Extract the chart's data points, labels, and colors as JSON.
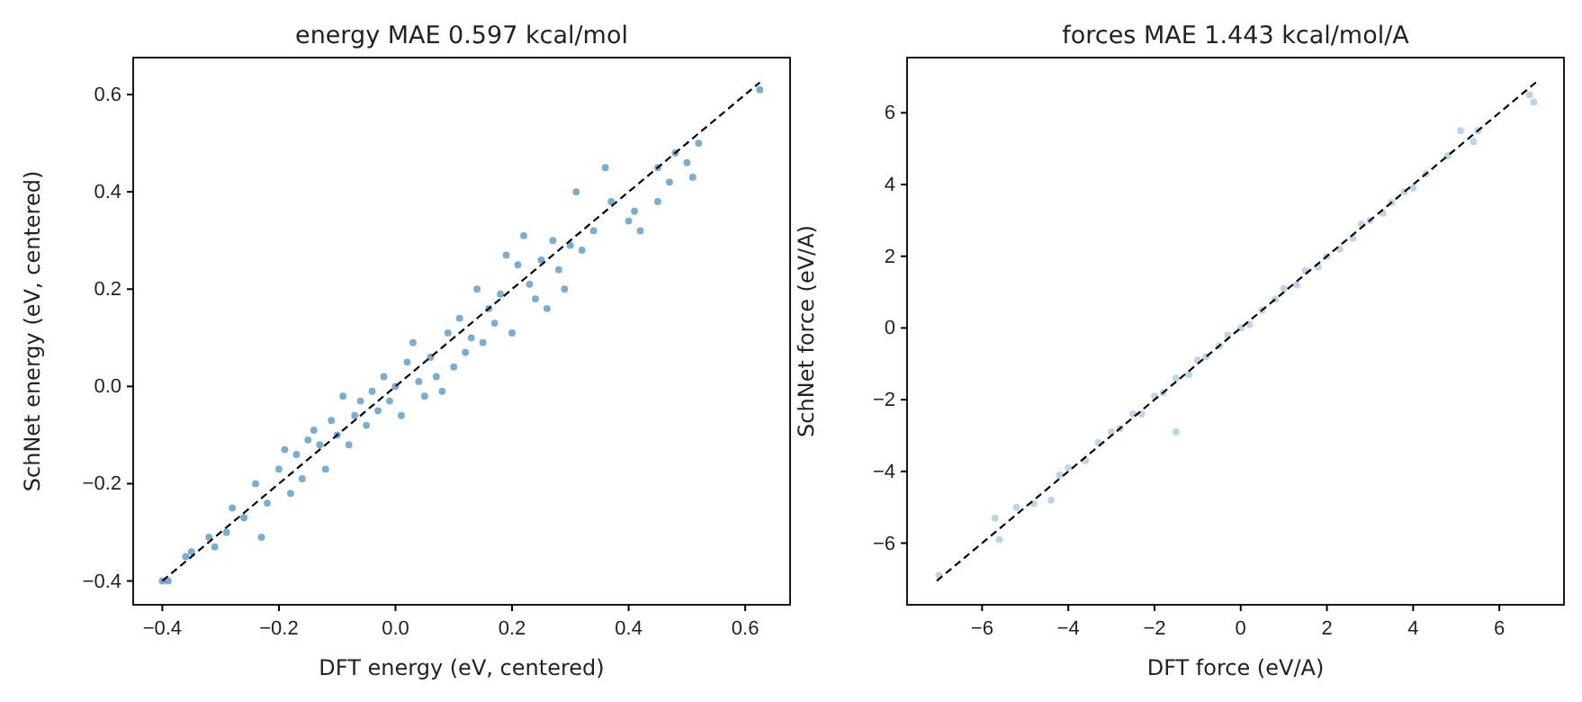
{
  "chart_data": [
    {
      "type": "scatter",
      "title": "energy  MAE 0.597 kcal/mol",
      "xlabel": "DFT energy (eV, centered)",
      "ylabel": "SchNet energy (eV, centered)",
      "xlim": [
        -0.45,
        0.677
      ],
      "ylim": [
        -0.449,
        0.676
      ],
      "xticks": [
        {
          "value": -0.4,
          "label": "−0.4"
        },
        {
          "value": -0.2,
          "label": "−0.2"
        },
        {
          "value": 0,
          "label": "0.0"
        },
        {
          "value": 0.2,
          "label": "0.2"
        },
        {
          "value": 0.4,
          "label": "0.4"
        },
        {
          "value": 0.6,
          "label": "0.6"
        }
      ],
      "yticks": [
        {
          "value": -0.4,
          "label": "−0.4"
        },
        {
          "value": -0.2,
          "label": "−0.2"
        },
        {
          "value": 0,
          "label": "0.0"
        },
        {
          "value": 0.2,
          "label": "0.2"
        },
        {
          "value": 0.4,
          "label": "0.4"
        },
        {
          "value": 0.6,
          "label": "0.6"
        }
      ],
      "grid": false,
      "marker": "circle",
      "series": [
        {
          "color": "#1f77b4",
          "x": [
            -0.4,
            -0.39,
            -0.36,
            -0.35,
            -0.32,
            -0.31,
            -0.29,
            -0.28,
            -0.26,
            -0.24,
            -0.23,
            -0.22,
            -0.2,
            -0.19,
            -0.18,
            -0.17,
            -0.16,
            -0.15,
            -0.14,
            -0.13,
            -0.12,
            -0.11,
            -0.1,
            -0.09,
            -0.08,
            -0.07,
            -0.06,
            -0.05,
            -0.04,
            -0.03,
            -0.02,
            -0.01,
            0,
            0.01,
            0.02,
            0.03,
            0.04,
            0.05,
            0.06,
            0.07,
            0.08,
            0.09,
            0.1,
            0.11,
            0.12,
            0.13,
            0.14,
            0.15,
            0.16,
            0.17,
            0.18,
            0.19,
            0.2,
            0.21,
            0.22,
            0.23,
            0.24,
            0.25,
            0.26,
            0.27,
            0.28,
            0.29,
            0.3,
            0.31,
            0.32,
            0.34,
            0.36,
            0.37,
            0.4,
            0.41,
            0.42,
            0.45,
            0.45,
            0.47,
            0.48,
            0.5,
            0.51,
            0.52,
            0.625
          ],
          "values": [
            -0.4,
            -0.4,
            -0.35,
            -0.34,
            -0.31,
            -0.33,
            -0.3,
            -0.25,
            -0.27,
            -0.2,
            -0.31,
            -0.24,
            -0.17,
            -0.13,
            -0.22,
            -0.14,
            -0.19,
            -0.11,
            -0.09,
            -0.12,
            -0.17,
            -0.07,
            -0.1,
            -0.02,
            -0.12,
            -0.06,
            -0.03,
            -0.08,
            -0.01,
            -0.05,
            0.02,
            -0.03,
            0,
            -0.06,
            0.05,
            0.09,
            0.01,
            -0.02,
            0.06,
            0.02,
            -0.01,
            0.11,
            0.04,
            0.14,
            0.07,
            0.1,
            0.2,
            0.09,
            0.16,
            0.13,
            0.19,
            0.27,
            0.11,
            0.25,
            0.31,
            0.21,
            0.18,
            0.26,
            0.16,
            0.3,
            0.24,
            0.2,
            0.29,
            0.4,
            0.28,
            0.32,
            0.45,
            0.38,
            0.34,
            0.36,
            0.32,
            0.38,
            0.45,
            0.42,
            0.48,
            0.46,
            0.43,
            0.5,
            0.61
          ]
        },
        {
          "type": "line",
          "color": "#000000",
          "line_style": "dashed",
          "marker": "none",
          "x": [
            -0.4,
            0.625
          ],
          "values": [
            -0.4,
            0.625
          ]
        }
      ]
    },
    {
      "type": "scatter",
      "title": "forces  MAE 1.443 kcal/mol/A",
      "xlabel": "DFT force (eV/A)",
      "ylabel": "SchNet force (eV/A)",
      "xlim": [
        -7.74,
        7.5
      ],
      "ylim": [
        -7.72,
        7.54
      ],
      "xticks": [
        {
          "value": -6,
          "label": "−6"
        },
        {
          "value": -4,
          "label": "−4"
        },
        {
          "value": -2,
          "label": "−2"
        },
        0,
        2,
        4,
        6
      ],
      "yticks": [
        {
          "value": -6,
          "label": "−6"
        },
        {
          "value": -4,
          "label": "−4"
        },
        {
          "value": -2,
          "label": "−2"
        },
        0,
        2,
        4,
        6
      ],
      "grid": false,
      "marker": "circle",
      "series": [
        {
          "color": "#1f77b4",
          "x": [
            -7,
            -5.7,
            -5.6,
            -5.2,
            -4.8,
            -4.4,
            -4.2,
            -4,
            -3.6,
            -3.3,
            -3,
            -2.8,
            -2.5,
            -2.3,
            -2,
            -1.8,
            -1.5,
            -1.5,
            -1.2,
            -1,
            -0.8,
            -0.5,
            -0.3,
            0,
            0.2,
            0.5,
            0.8,
            1,
            1.3,
            1.5,
            1.8,
            2,
            2.3,
            2.6,
            2.8,
            3,
            3.3,
            3.5,
            3.8,
            4,
            4.3,
            4.8,
            5.1,
            5.4,
            5.5,
            6.7,
            6.8
          ],
          "values": [
            -6.9,
            -5.3,
            -5.9,
            -5,
            -4.9,
            -4.8,
            -4.1,
            -3.9,
            -3.7,
            -3.2,
            -2.9,
            -2.8,
            -2.4,
            -2.4,
            -1.9,
            -1.8,
            -2.9,
            -1.4,
            -1.3,
            -0.9,
            -0.8,
            -0.5,
            -0.2,
            0,
            0.1,
            0.5,
            0.8,
            1.1,
            1.2,
            1.6,
            1.7,
            2,
            2.2,
            2.5,
            2.9,
            3,
            3.2,
            3.5,
            3.8,
            3.9,
            4.3,
            4.8,
            5.5,
            5.2,
            5.5,
            6.5,
            6.3
          ]
        },
        {
          "type": "line",
          "color": "#000000",
          "line_style": "dashed",
          "marker": "none",
          "x": [
            -7.05,
            6.85
          ],
          "values": [
            -7.05,
            6.85
          ]
        }
      ]
    }
  ]
}
